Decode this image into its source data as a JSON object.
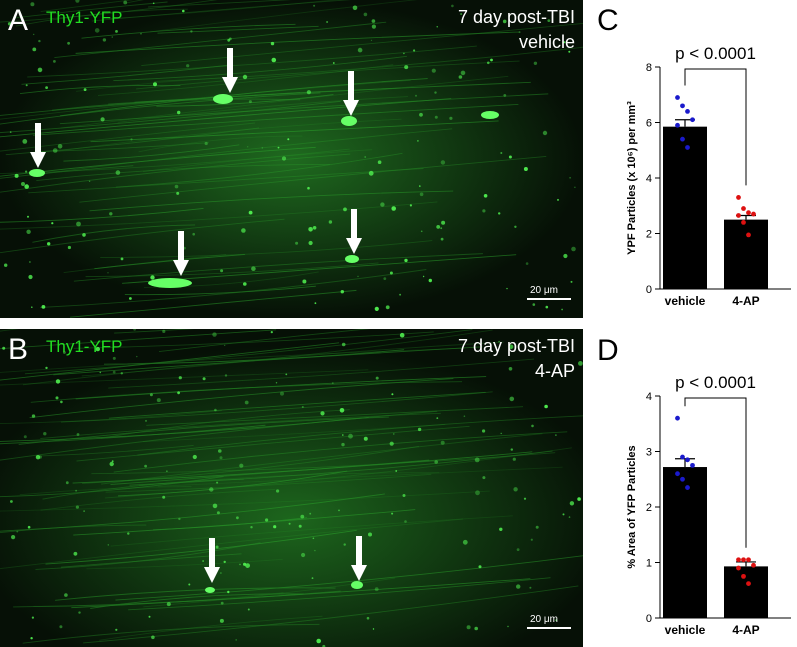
{
  "panels": [
    {
      "letter": "A",
      "stain": "Thy1-YFP",
      "condition_line1": "7 day post-TBI",
      "condition_line2": "vehicle",
      "scale_label": "20 μm"
    },
    {
      "letter": "B",
      "stain": "Thy1-YFP",
      "condition_line1": "7 day post-TBI",
      "condition_line2": "4-AP",
      "scale_label": "20 μm"
    }
  ],
  "chart_letters": {
    "c": "C",
    "d": "D"
  },
  "chart_data": [
    {
      "type": "bar",
      "categories": [
        "vehicle",
        "4-AP"
      ],
      "values": [
        5.85,
        2.5
      ],
      "errors": [
        0.25,
        0.15
      ],
      "points": [
        [
          6.9,
          6.6,
          6.4,
          6.1,
          5.9,
          5.4,
          5.1
        ],
        [
          3.3,
          2.9,
          2.75,
          2.7,
          2.65,
          2.4,
          1.95
        ]
      ],
      "point_colors": [
        "#1a1acc",
        "#dd1111"
      ],
      "ylabel": "YPF Particles (x 10⁶) per mm³",
      "ylim": [
        0,
        8
      ],
      "yticks": [
        "0",
        "2",
        "4",
        "6",
        "8"
      ],
      "annotation": "p < 0.0001"
    },
    {
      "type": "bar",
      "categories": [
        "vehicle",
        "4-AP"
      ],
      "values": [
        2.72,
        0.93
      ],
      "errors": [
        0.15,
        0.08
      ],
      "points": [
        [
          3.6,
          2.9,
          2.85,
          2.75,
          2.6,
          2.5,
          2.35
        ],
        [
          1.05,
          1.05,
          1.05,
          0.95,
          0.9,
          0.75,
          0.62
        ]
      ],
      "point_colors": [
        "#1a1acc",
        "#dd1111"
      ],
      "ylabel": "% Area of YFP Particles",
      "ylim": [
        0,
        4
      ],
      "yticks": [
        "0",
        "1",
        "2",
        "3",
        "4"
      ],
      "annotation": "p < 0.0001"
    }
  ]
}
